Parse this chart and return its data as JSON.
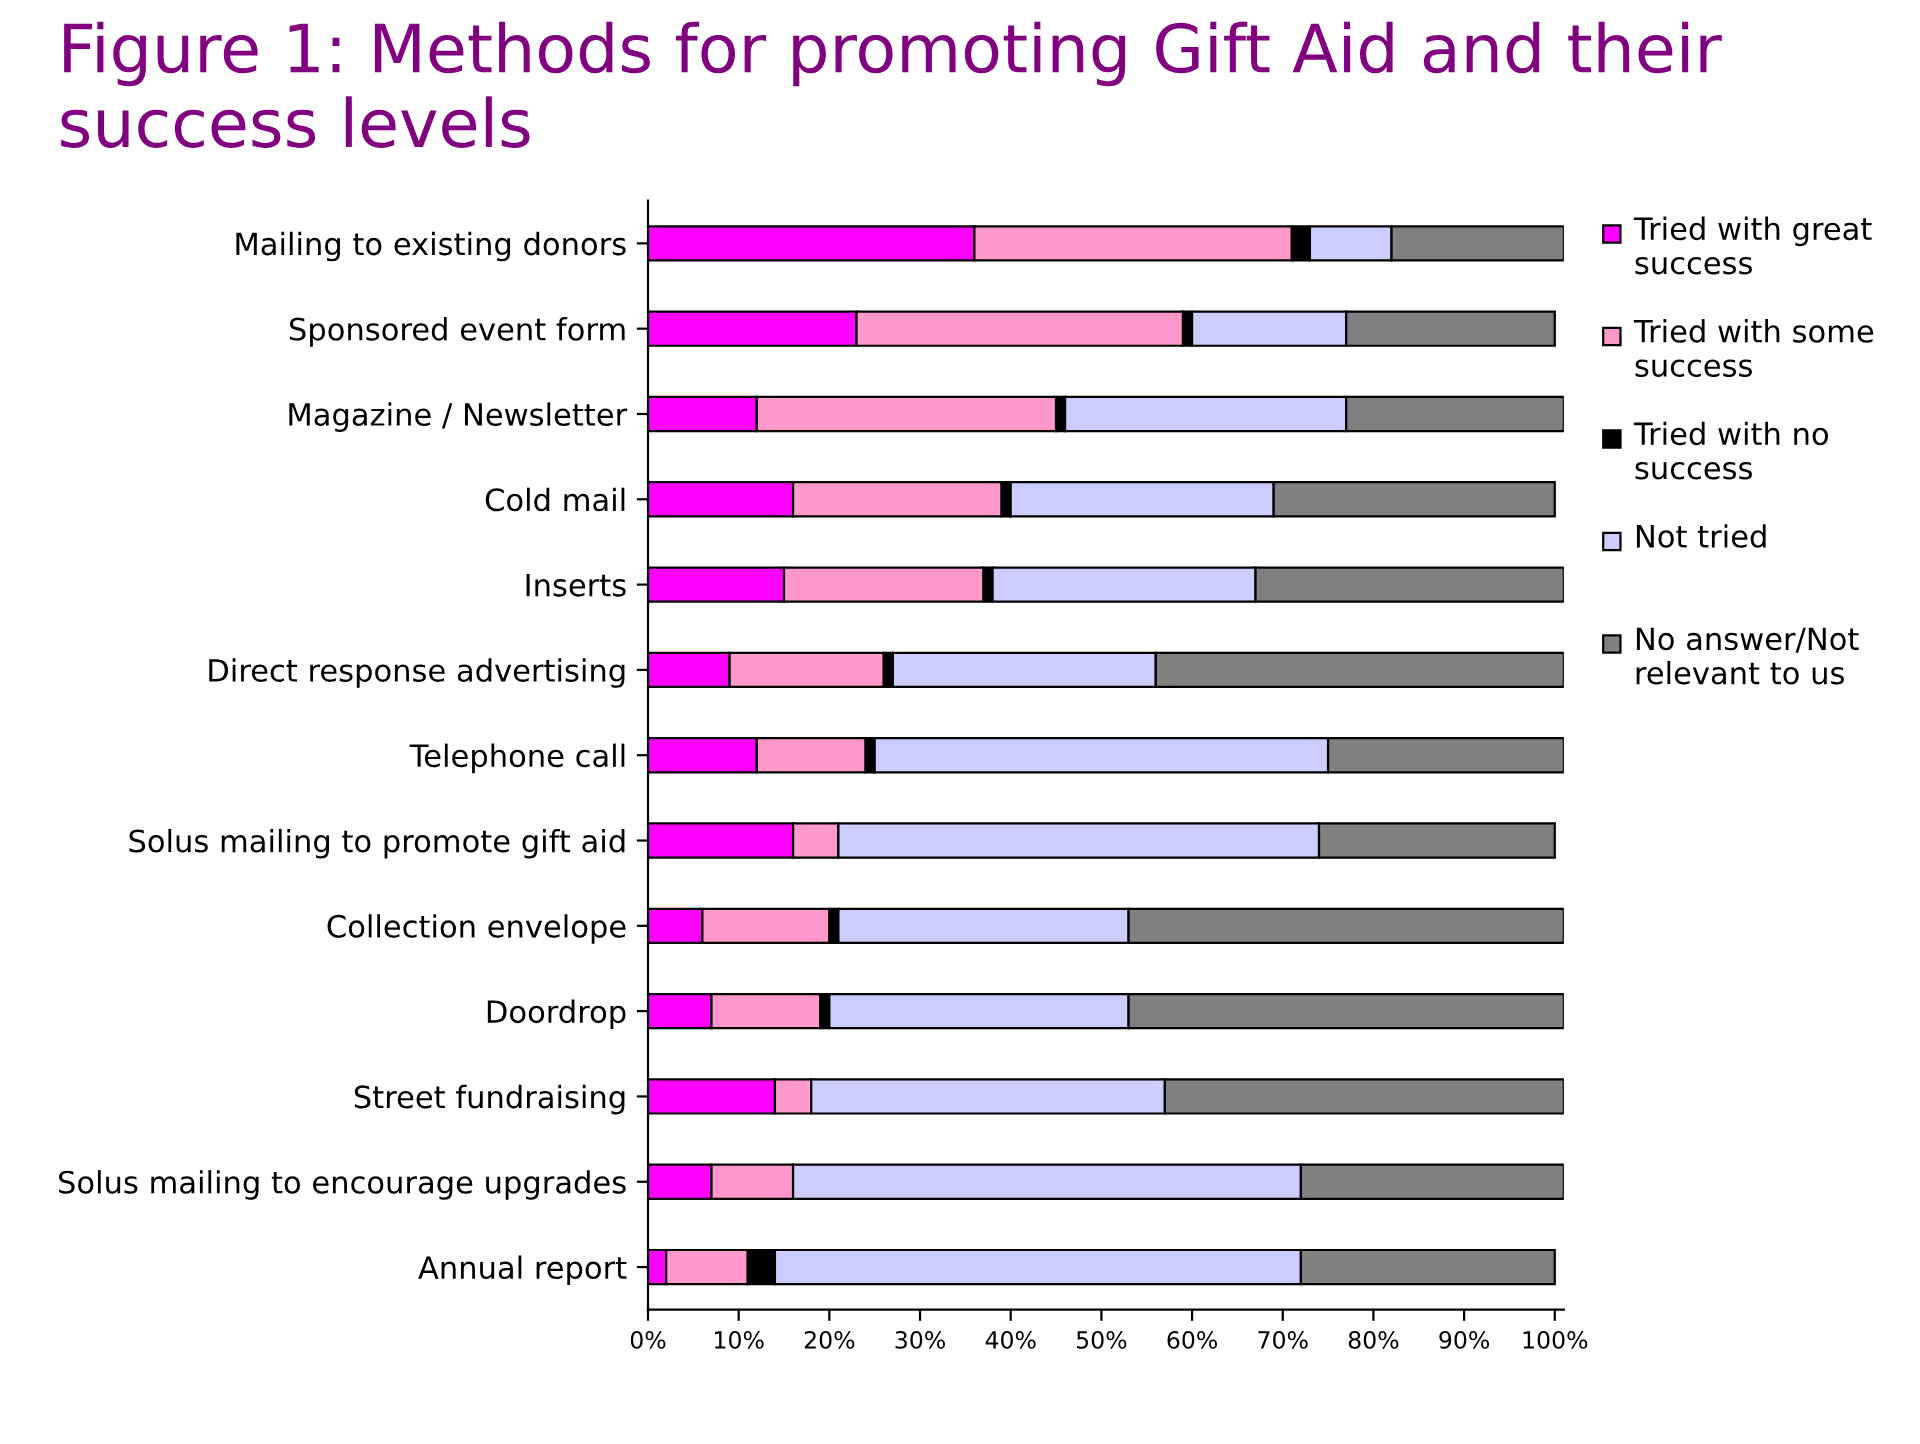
{
  "chart_data": {
    "type": "bar",
    "orientation": "horizontal",
    "stacked": true,
    "title": "Figure 1: Methods for promoting Gift Aid and their success levels",
    "categories": [
      "Mailing to existing donors",
      "Sponsored event form",
      "Magazine / Newsletter",
      "Cold mail",
      "Inserts",
      "Direct response advertising",
      "Telephone call",
      "Solus mailing to promote gift aid",
      "Collection envelope",
      "Doordrop",
      "Street fundraising",
      "Solus mailing to encourage upgrades",
      "Annual report"
    ],
    "series": [
      {
        "name": "Tried with great success",
        "color": "#ff00ff",
        "values": [
          36,
          23,
          12,
          16,
          15,
          9,
          12,
          16,
          6,
          7,
          14,
          7,
          2
        ]
      },
      {
        "name": "Tried with some success",
        "color": "#ff99cc",
        "values": [
          35,
          36,
          33,
          23,
          22,
          17,
          12,
          5,
          14,
          12,
          4,
          9,
          9
        ]
      },
      {
        "name": "Tried with no success",
        "color": "#000000",
        "values": [
          2,
          1,
          1,
          1,
          1,
          1,
          1,
          0,
          1,
          1,
          0,
          0,
          3
        ]
      },
      {
        "name": "Not tried",
        "color": "#ccccff",
        "values": [
          9,
          17,
          31,
          29,
          29,
          29,
          50,
          53,
          32,
          33,
          39,
          56,
          58
        ]
      },
      {
        "name": "No answer/Not relevant to us",
        "color": "#808080",
        "values": [
          19,
          23,
          24,
          31,
          34,
          45,
          26,
          26,
          48,
          48,
          44,
          29,
          28
        ]
      }
    ],
    "xlim": [
      0,
      101
    ],
    "xticks": [
      {
        "value": 0,
        "label": "0%"
      },
      {
        "value": 10,
        "label": "10%"
      },
      {
        "value": 20,
        "label": "20%"
      },
      {
        "value": 30,
        "label": "30%"
      },
      {
        "value": 40,
        "label": "40%"
      },
      {
        "value": 50,
        "label": "50%"
      },
      {
        "value": 60,
        "label": "60%"
      },
      {
        "value": 70,
        "label": "70%"
      },
      {
        "value": 80,
        "label": "80%"
      },
      {
        "value": 90,
        "label": "90%"
      },
      {
        "value": 100,
        "label": "100%"
      }
    ],
    "grid": false,
    "legend": "right"
  }
}
